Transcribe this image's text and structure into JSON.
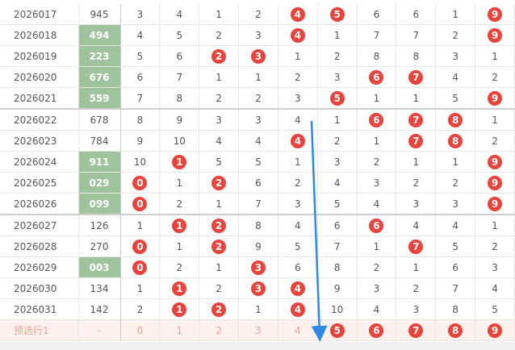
{
  "table": {
    "separators_after": [
      4,
      9
    ],
    "rows": [
      {
        "issue": "2026017",
        "number": "945",
        "highlight": false,
        "cells": [
          "3",
          "4",
          "1",
          "2",
          "4",
          "5",
          "6",
          "6",
          "1",
          "9"
        ],
        "hits": [
          4,
          5,
          9
        ]
      },
      {
        "issue": "2026018",
        "number": "494",
        "highlight": true,
        "cells": [
          "4",
          "5",
          "2",
          "3",
          "4",
          "1",
          "7",
          "7",
          "2",
          "9"
        ],
        "hits": [
          4,
          9
        ]
      },
      {
        "issue": "2026019",
        "number": "223",
        "highlight": true,
        "cells": [
          "5",
          "6",
          "2",
          "3",
          "1",
          "2",
          "8",
          "8",
          "3",
          "1"
        ],
        "hits": [
          2,
          3
        ]
      },
      {
        "issue": "2026020",
        "number": "676",
        "highlight": true,
        "cells": [
          "6",
          "7",
          "1",
          "1",
          "2",
          "3",
          "6",
          "7",
          "4",
          "2"
        ],
        "hits": [
          6,
          7
        ]
      },
      {
        "issue": "2026021",
        "number": "559",
        "highlight": true,
        "cells": [
          "7",
          "8",
          "2",
          "2",
          "3",
          "5",
          "1",
          "1",
          "5",
          "9"
        ],
        "hits": [
          5,
          9
        ]
      },
      {
        "issue": "2026022",
        "number": "678",
        "highlight": false,
        "cells": [
          "8",
          "9",
          "3",
          "3",
          "4",
          "1",
          "6",
          "7",
          "8",
          "1"
        ],
        "hits": [
          6,
          7,
          8
        ]
      },
      {
        "issue": "2026023",
        "number": "784",
        "highlight": false,
        "cells": [
          "9",
          "10",
          "4",
          "4",
          "4",
          "2",
          "1",
          "7",
          "8",
          "2"
        ],
        "hits": [
          4,
          7,
          8
        ]
      },
      {
        "issue": "2026024",
        "number": "911",
        "highlight": true,
        "cells": [
          "10",
          "1",
          "5",
          "5",
          "1",
          "3",
          "2",
          "1",
          "1",
          "9"
        ],
        "hits": [
          1,
          9
        ]
      },
      {
        "issue": "2026025",
        "number": "029",
        "highlight": true,
        "cells": [
          "0",
          "1",
          "2",
          "6",
          "2",
          "4",
          "3",
          "2",
          "2",
          "9"
        ],
        "hits": [
          0,
          2,
          9
        ]
      },
      {
        "issue": "2026026",
        "number": "099",
        "highlight": true,
        "cells": [
          "0",
          "2",
          "1",
          "7",
          "3",
          "5",
          "4",
          "3",
          "3",
          "9"
        ],
        "hits": [
          0,
          9
        ]
      },
      {
        "issue": "2026027",
        "number": "126",
        "highlight": false,
        "cells": [
          "1",
          "1",
          "2",
          "8",
          "4",
          "6",
          "6",
          "4",
          "4",
          "1"
        ],
        "hits": [
          1,
          2,
          6
        ]
      },
      {
        "issue": "2026028",
        "number": "270",
        "highlight": false,
        "cells": [
          "0",
          "1",
          "2",
          "9",
          "5",
          "7",
          "1",
          "7",
          "5",
          "2"
        ],
        "hits": [
          0,
          2,
          7
        ]
      },
      {
        "issue": "2026029",
        "number": "003",
        "highlight": true,
        "cells": [
          "0",
          "2",
          "1",
          "3",
          "6",
          "8",
          "2",
          "1",
          "6",
          "3"
        ],
        "hits": [
          0,
          3
        ]
      },
      {
        "issue": "2026030",
        "number": "134",
        "highlight": false,
        "cells": [
          "1",
          "1",
          "2",
          "3",
          "4",
          "9",
          "3",
          "2",
          "7",
          "4"
        ],
        "hits": [
          1,
          3,
          4
        ]
      },
      {
        "issue": "2026031",
        "number": "142",
        "highlight": false,
        "cells": [
          "2",
          "1",
          "2",
          "1",
          "4",
          "10",
          "4",
          "3",
          "8",
          "5"
        ],
        "hits": [
          1,
          2,
          4
        ]
      }
    ],
    "preset": {
      "issue": "预选行1",
      "number": "-",
      "cells": [
        "0",
        "1",
        "2",
        "3",
        "4",
        "5",
        "6",
        "7",
        "8",
        "9"
      ],
      "hits": [
        5,
        6,
        7,
        8,
        9
      ]
    }
  }
}
